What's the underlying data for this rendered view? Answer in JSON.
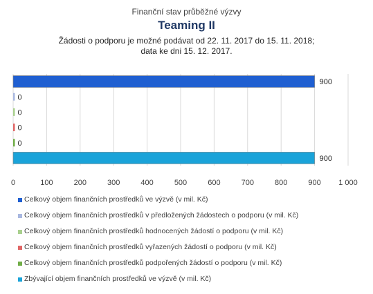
{
  "header": {
    "supertitle": "Finanční stav průběžné výzvy",
    "title": "Teaming II",
    "subtitle_line1": "Žádosti o podporu je možné  podávat od 22. 11. 2017 do 15. 11. 2018;",
    "subtitle_line2": "data ke dni 15. 12. 2017."
  },
  "chart_data": {
    "type": "bar",
    "orientation": "horizontal",
    "title": "Teaming II",
    "xlim": [
      0,
      1000
    ],
    "xticks": [
      0,
      100,
      200,
      300,
      400,
      500,
      600,
      700,
      800,
      900,
      1000
    ],
    "xtick_labels": [
      "0",
      "100",
      "200",
      "300",
      "400",
      "500",
      "600",
      "700",
      "800",
      "900",
      "1 000"
    ],
    "grid": true,
    "legend_position": "bottom",
    "series": [
      {
        "name": "Celkový objem finančních prostředků ve výzvě (v mil. Kč)",
        "value": 900,
        "label": "900",
        "color": "#1f5fd1"
      },
      {
        "name": "Celkový objem finančních prostředků v předložených žádostech o podporu (v mil. Kč)",
        "value": 0,
        "label": "0",
        "color": "#a9b8e0"
      },
      {
        "name": "Celkový objem finančních prostředků hodnocených žádostí o podporu (v mil. Kč)",
        "value": 0,
        "label": "0",
        "color": "#a9d08e"
      },
      {
        "name": "Celkový objem finančních prostředků vyřazených žádostí o podporu (v mil. Kč)",
        "value": 0,
        "label": "0",
        "color": "#e06666"
      },
      {
        "name": "Celkový objem finančních prostředků podpořených žádostí o podporu (v mil. Kč)",
        "value": 0,
        "label": "0",
        "color": "#70ad47"
      },
      {
        "name": "Zbývající objem finančních prostředků ve výzvě (v mil. Kč)",
        "value": 900,
        "label": "900",
        "color": "#1aa3d9"
      }
    ]
  }
}
